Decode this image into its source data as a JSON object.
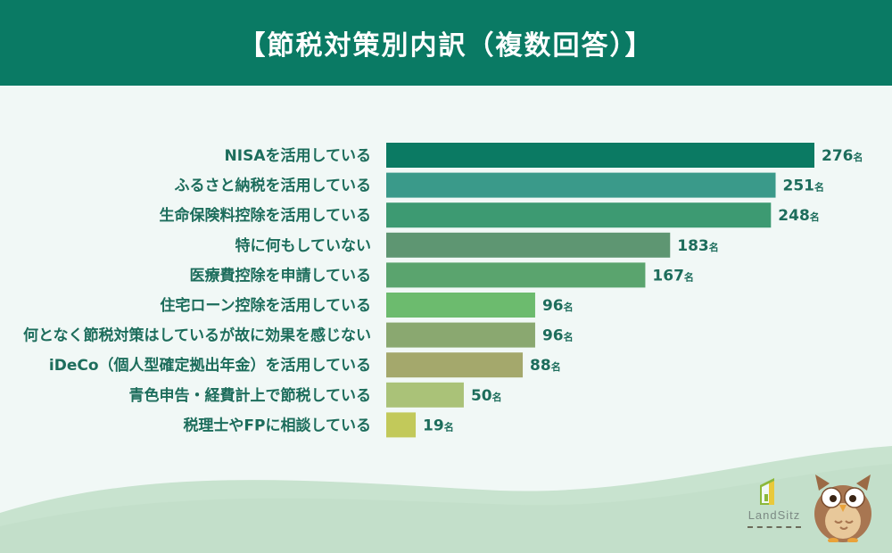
{
  "chart_data": {
    "type": "bar",
    "orientation": "horizontal",
    "title": "【節税対策別内訳（複数回答）】",
    "categories": [
      "NISAを活用している",
      "ふるさと納税を活用している",
      "生命保険料控除を活用している",
      "特に何もしていない",
      "医療費控除を申請している",
      "住宅ローン控除を活用している",
      "何となく節税対策はしているが故に効果を感じない",
      "iDeCo（個人型確定拠出年金）を活用している",
      "青色申告・経費計上で節税している",
      "税理士やFPに相談している"
    ],
    "values": [
      276,
      251,
      248,
      183,
      167,
      96,
      96,
      88,
      50,
      19
    ],
    "value_unit": "名",
    "bar_colors": [
      "#0b7a63",
      "#3a9a8a",
      "#3d9a72",
      "#5e9672",
      "#5aa46e",
      "#6cbb6e",
      "#8aa870",
      "#a4a86c",
      "#aac278",
      "#c2c95a"
    ],
    "xlim": [
      0,
      276
    ],
    "grid": false
  },
  "logo": {
    "text": "LandSitz"
  },
  "colors": {
    "header_bg": "#0a7a64",
    "page_bg": "#f1f8f6",
    "label_text": "#1d6d5c",
    "wave": "#c8e3cf"
  },
  "icons": [
    "landsitz-logo-icon",
    "owl-mascot-icon"
  ]
}
